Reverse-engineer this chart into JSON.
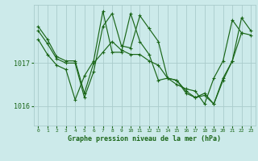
{
  "title": "Graphe pression niveau de la mer (hPa)",
  "background_color": "#cceaea",
  "grid_color": "#aacccc",
  "line_color": "#1a6618",
  "x_ticks": [
    0,
    1,
    2,
    3,
    4,
    5,
    6,
    7,
    8,
    9,
    10,
    11,
    12,
    13,
    14,
    15,
    16,
    17,
    18,
    19,
    20,
    21,
    22,
    23
  ],
  "ylim": [
    1015.55,
    1018.35
  ],
  "yticks": [
    1016,
    1017
  ],
  "series": [
    [
      1017.85,
      1017.55,
      1017.15,
      1017.05,
      1017.05,
      1016.3,
      1017.0,
      1017.25,
      1017.5,
      1017.3,
      1017.2,
      1017.2,
      1017.05,
      1016.95,
      1016.65,
      1016.6,
      1016.3,
      1016.2,
      1016.25,
      1016.05,
      1016.6,
      1017.05,
      1017.7,
      1017.65
    ],
    [
      1017.75,
      1017.45,
      1017.1,
      1017.0,
      1017.0,
      1016.2,
      1016.8,
      1017.85,
      1018.15,
      1017.4,
      1017.35,
      1018.1,
      1017.8,
      1017.5,
      1016.65,
      1016.6,
      1016.35,
      1016.2,
      1016.3,
      1016.05,
      1016.65,
      1017.05,
      1018.05,
      1017.75
    ],
    [
      1017.55,
      1017.2,
      1016.95,
      1016.85,
      1016.15,
      1016.7,
      1017.05,
      1018.2,
      1017.25,
      1017.25,
      1018.15,
      1017.5,
      1017.2,
      1016.6,
      1016.65,
      1016.5,
      1016.4,
      1016.35,
      1016.05,
      1016.65,
      1017.05,
      1018.0,
      1017.7,
      null
    ]
  ]
}
